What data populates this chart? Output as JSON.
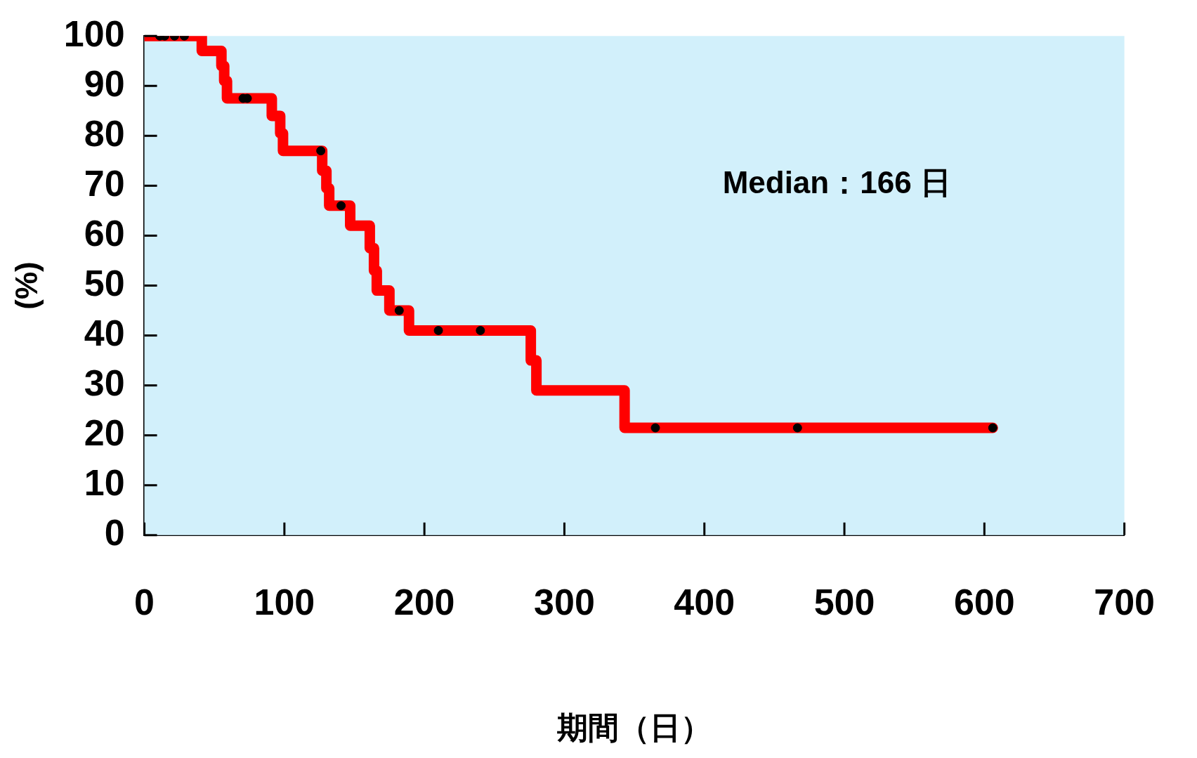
{
  "chart_data": {
    "type": "step",
    "xlabel": "期間（日）",
    "ylabel": "(%)",
    "annotations": [
      "Median：166 日"
    ],
    "xlim": [
      0,
      700
    ],
    "xticks": [
      0,
      100,
      200,
      300,
      400,
      500,
      600,
      700
    ],
    "ylim": [
      0,
      100
    ],
    "yticks": [
      0,
      10,
      20,
      30,
      40,
      50,
      60,
      70,
      80,
      90,
      100
    ],
    "grid": false,
    "legend": false,
    "series": [
      {
        "type": "step",
        "color": "#ff0000",
        "x": [
          0,
          41,
          55,
          57,
          59,
          91,
          97,
          99,
          127,
          130,
          132,
          147,
          161,
          164,
          166,
          175,
          189,
          276,
          280,
          343,
          606
        ],
        "values": [
          100,
          97,
          94,
          91,
          87.5,
          84,
          80.5,
          77,
          73,
          69.5,
          66,
          62,
          57.5,
          53,
          49,
          45,
          41,
          35,
          29,
          21.5,
          21.5
        ]
      },
      {
        "type": "scatter",
        "color": "#000000",
        "marker": "circle",
        "x": [
          11,
          14.5,
          21.5,
          28.5,
          70.5,
          73.5,
          126,
          140.5,
          182,
          210,
          240,
          365,
          466.5,
          606
        ],
        "values": [
          100,
          100,
          100,
          100,
          87.5,
          87.5,
          77,
          66,
          45,
          41,
          41,
          21.5,
          21.5,
          21.5
        ]
      }
    ]
  }
}
